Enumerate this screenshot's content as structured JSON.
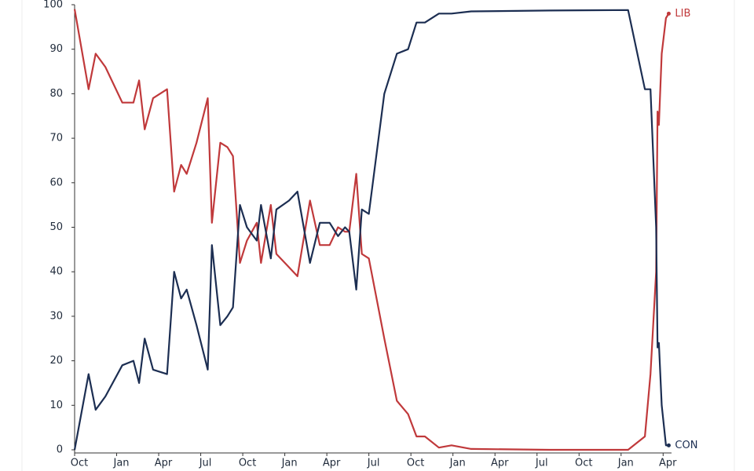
{
  "chart_data": {
    "type": "line",
    "x": [
      0,
      1.0,
      1.5,
      2.2,
      3.4,
      4.2,
      4.6,
      5.0,
      5.6,
      6.6,
      7.1,
      7.6,
      8.0,
      8.7,
      9.5,
      9.8,
      10.4,
      10.9,
      11.3,
      11.8,
      12.3,
      13.0,
      13.3,
      14.0,
      14.4,
      15.3,
      15.9,
      16.8,
      17.5,
      18.2,
      18.8,
      19.3,
      19.6,
      20.1,
      20.5,
      21.0,
      22.1,
      23.0,
      23.8,
      24.4,
      25.0,
      26.0,
      26.9,
      28.3,
      33.9,
      39.5,
      40.7,
      41.1,
      41.5,
      41.6,
      41.7,
      41.9,
      42.2,
      42.4
    ],
    "series": [
      {
        "name": "LIB",
        "color": "#c0393b",
        "values": [
          99,
          81,
          89,
          86,
          78,
          78,
          83,
          72,
          79,
          81,
          58,
          64,
          62,
          69,
          79,
          51,
          69,
          68,
          66,
          42,
          47,
          51,
          42,
          55,
          44,
          41,
          39,
          56,
          46,
          46,
          50,
          49,
          49,
          62,
          44,
          43,
          25,
          11,
          8,
          3,
          3,
          0.5,
          1,
          0.2,
          0,
          0,
          3,
          17,
          40,
          76,
          73,
          89,
          97,
          98
        ]
      },
      {
        "name": "CON",
        "color": "#1c2e52",
        "values": [
          0,
          17,
          9,
          12,
          19,
          20,
          15,
          25,
          18,
          17,
          40,
          34,
          36,
          28,
          18,
          46,
          28,
          30,
          32,
          55,
          50,
          47,
          55,
          43,
          54,
          56,
          58,
          42,
          51,
          51,
          48,
          50,
          49,
          36,
          54,
          53,
          80,
          89,
          90,
          96,
          96,
          98,
          98,
          98.5,
          98.7,
          98.8,
          81,
          81,
          50,
          23,
          24,
          10,
          1,
          1
        ]
      }
    ],
    "xlim": [
      0,
      42.6
    ],
    "xticks": [
      {
        "value": 0,
        "label": "Oct"
      },
      {
        "value": 3,
        "label": "Jan"
      },
      {
        "value": 6,
        "label": "Apr"
      },
      {
        "value": 9,
        "label": "Jul"
      },
      {
        "value": 12,
        "label": "Oct"
      },
      {
        "value": 15,
        "label": "Jan"
      },
      {
        "value": 18,
        "label": "Apr"
      },
      {
        "value": 21,
        "label": "Jul"
      },
      {
        "value": 24,
        "label": "Oct"
      },
      {
        "value": 27,
        "label": "Jan"
      },
      {
        "value": 30,
        "label": "Apr"
      },
      {
        "value": 33,
        "label": "Jul"
      },
      {
        "value": 36,
        "label": "Oct"
      },
      {
        "value": 39,
        "label": "Jan"
      },
      {
        "value": 42,
        "label": "Apr"
      }
    ],
    "ylim": [
      0,
      100
    ],
    "yticks": [
      0,
      10,
      20,
      30,
      40,
      50,
      60,
      70,
      80,
      90,
      100
    ],
    "grid": false
  }
}
